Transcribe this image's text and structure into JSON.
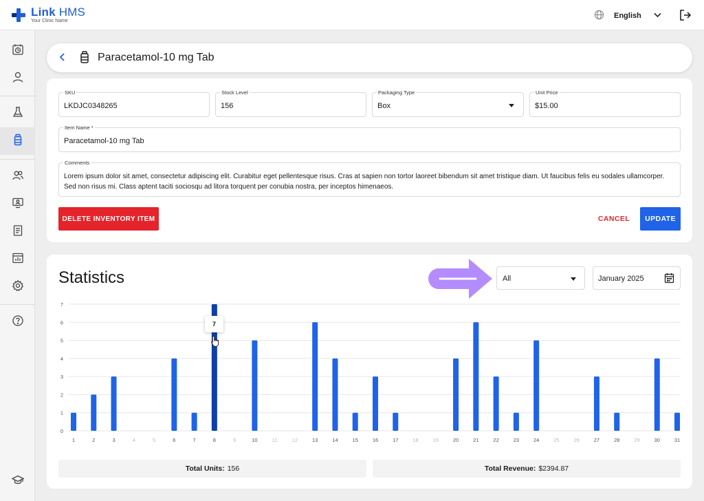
{
  "app": {
    "name_bold": "Link",
    "name_thin": "HMS",
    "subtitle": "Your Clinic Name",
    "language": "English"
  },
  "header": {
    "title": "Paracetamol-10 mg Tab"
  },
  "form": {
    "sku": {
      "label": "SKU",
      "value": "LKDJC0348265"
    },
    "stock": {
      "label": "Stock Level",
      "value": "156"
    },
    "packaging": {
      "label": "Packaging Type",
      "value": "Box"
    },
    "price": {
      "label": "Unit Price",
      "value": "$15.00"
    },
    "item_name": {
      "label": "Item Name *",
      "value": "Paracetamol-10 mg Tab"
    },
    "comments": {
      "label": "Comments",
      "value": "Lorem ipsum dolor sit amet, consectetur adipiscing elit. Curabitur eget pellentesque risus. Cras at sapien non tortor laoreet bibendum sit amet tristique diam. Ut faucibus felis eu sodales ullamcorper. Sed non risus mi. Class aptent taciti sociosqu ad litora torquent per conubia nostra, per inceptos himenaeos."
    },
    "delete_label": "DELETE INVENTORY ITEM",
    "cancel_label": "CANCEL",
    "update_label": "UPDATE"
  },
  "stats": {
    "title": "Statistics",
    "filter_value": "All",
    "date_value": "January 2025",
    "tooltip_value": "7",
    "total_units_label": "Total Units:",
    "total_units_value": "156",
    "total_revenue_label": "Total Revenue:",
    "total_revenue_value": "$2394.87"
  },
  "colors": {
    "accent": "#1f63e8",
    "danger": "#e5232b",
    "bar": "#1f63e8",
    "bar_highlight": "#0f3fa8",
    "annotation": "#b48cff"
  },
  "chart_data": {
    "type": "bar",
    "categories": [
      "1",
      "2",
      "3",
      "4",
      "5",
      "6",
      "7",
      "8",
      "9",
      "10",
      "11",
      "12",
      "13",
      "14",
      "15",
      "16",
      "17",
      "18",
      "19",
      "20",
      "21",
      "22",
      "23",
      "24",
      "25",
      "26",
      "27",
      "28",
      "29",
      "30",
      "31"
    ],
    "values": [
      1,
      2,
      3,
      0,
      0,
      4,
      1,
      7,
      0,
      5,
      0,
      0,
      6,
      4,
      1,
      3,
      1,
      0,
      0,
      4,
      6,
      3,
      1,
      5,
      0,
      0,
      3,
      1,
      0,
      4,
      1
    ],
    "highlighted_index": 7,
    "ylim": [
      0,
      7
    ],
    "yticks": [
      0,
      1,
      2,
      3,
      4,
      5,
      6,
      7
    ],
    "grid": true,
    "title": "",
    "xlabel": "",
    "ylabel": ""
  }
}
